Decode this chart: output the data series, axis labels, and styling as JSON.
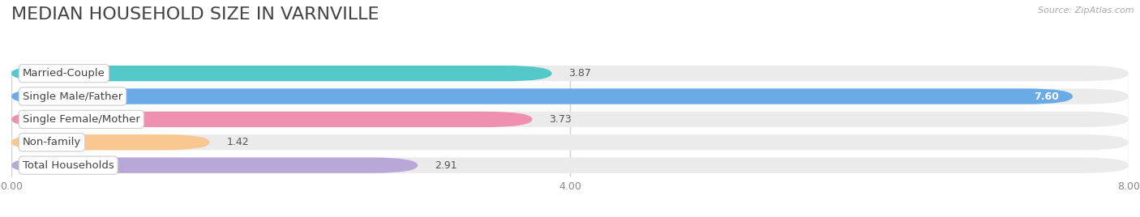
{
  "title": "MEDIAN HOUSEHOLD SIZE IN VARNVILLE",
  "source": "Source: ZipAtlas.com",
  "categories": [
    "Married-Couple",
    "Single Male/Father",
    "Single Female/Mother",
    "Non-family",
    "Total Households"
  ],
  "values": [
    3.87,
    7.6,
    3.73,
    1.42,
    2.91
  ],
  "bar_colors": [
    "#52c8c8",
    "#6aaae6",
    "#f090b0",
    "#f8c890",
    "#b8a8d8"
  ],
  "label_dot_colors": [
    "#52c8c8",
    "#6aaae6",
    "#f090b0",
    "#f8c890",
    "#b8a8d8"
  ],
  "value_in_bar": [
    false,
    true,
    false,
    false,
    false
  ],
  "xlim": [
    0,
    8.0
  ],
  "xticks": [
    0.0,
    4.0,
    8.0
  ],
  "xtick_labels": [
    "0.00",
    "4.00",
    "8.00"
  ],
  "title_fontsize": 16,
  "label_fontsize": 9.5,
  "value_fontsize": 9,
  "bg_color": "#ffffff",
  "bar_bg_color": "#ebebeb",
  "grid_color": "#d0d0d0",
  "bar_height": 0.68,
  "bar_rounding": 0.34
}
